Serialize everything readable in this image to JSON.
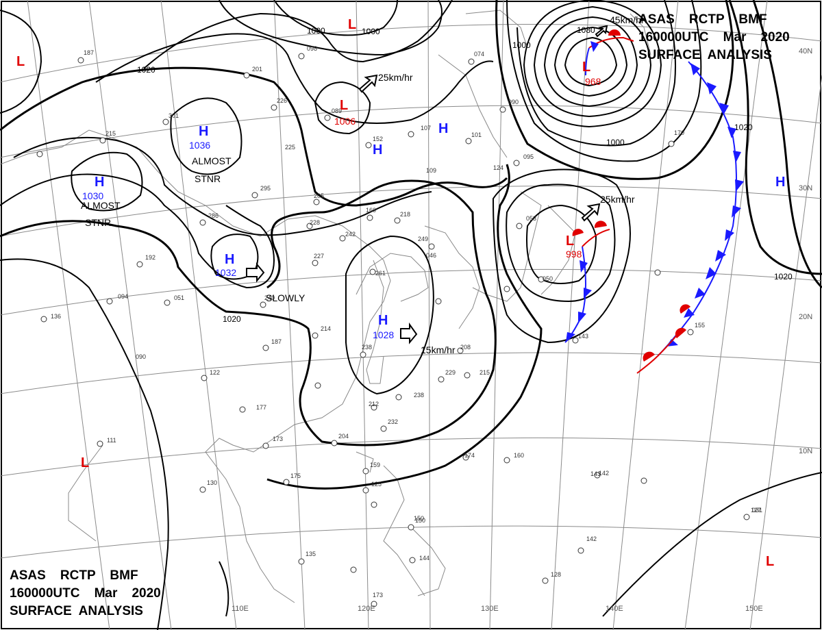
{
  "header_top": {
    "line1": "ASAS    RCTP    BMF",
    "line2": "160000UTC    Mar    2020",
    "line3": "SURFACE  ANALYSIS"
  },
  "header_bottom": {
    "line1": "ASAS    RCTP    BMF",
    "line2": "160000UTC    Mar    2020",
    "line3": "SURFACE  ANALYSIS"
  },
  "isobar_labels": [
    "1000",
    "1000",
    "1020",
    "1000",
    "1020",
    "1020",
    "1020",
    "1000",
    "1080"
  ],
  "longitudes": [
    "110E",
    "120E",
    "130E",
    "140E",
    "150E"
  ],
  "latitudes": [
    "40N",
    "30N",
    "20N",
    "10N"
  ],
  "centers": [
    {
      "type": "H",
      "pressure": "1036",
      "note": "ALMOST STNR"
    },
    {
      "type": "H",
      "pressure": "1030",
      "note": "ALMOST STNR"
    },
    {
      "type": "H",
      "pressure": "1032",
      "note": "SLOWLY"
    },
    {
      "type": "H",
      "pressure": "1028",
      "note": "15km/hr"
    },
    {
      "type": "L",
      "pressure": "1006",
      "note": "25km/hr"
    },
    {
      "type": "L",
      "pressure": "968",
      "note": "45km/hr"
    },
    {
      "type": "L",
      "pressure": "998",
      "note": "25km/hr"
    },
    {
      "type": "H",
      "pressure": "",
      "note": ""
    },
    {
      "type": "H",
      "pressure": "",
      "note": ""
    },
    {
      "type": "H",
      "pressure": "",
      "note": ""
    },
    {
      "type": "L",
      "pressure": "",
      "note": ""
    },
    {
      "type": "L",
      "pressure": "",
      "note": ""
    },
    {
      "type": "L",
      "pressure": "",
      "note": ""
    },
    {
      "type": "L",
      "pressure": "",
      "note": ""
    }
  ],
  "notes": {
    "almost_stnr_1": "ALMOST",
    "stnr_1": "STNR",
    "almost_stnr_2": "ALMOST",
    "stnr_2": "STNR",
    "slowly": "SLOWLY",
    "speed_15": "15km/hr",
    "speed_25a": "25km/hr",
    "speed_25b": "25km/hr",
    "speed_45": "45km/hr"
  },
  "station_obs": [
    "098",
    "201",
    "089",
    "152",
    "107",
    "101",
    "226",
    "301",
    "215",
    "225",
    "295",
    "205",
    "286",
    "228",
    "242",
    "160",
    "218",
    "227",
    "192",
    "094",
    "051",
    "136",
    "240",
    "214",
    "187",
    "090",
    "122",
    "177",
    "173",
    "204",
    "238",
    "212",
    "232",
    "229",
    "215",
    "208",
    "238",
    "174",
    "111",
    "130",
    "175",
    "159",
    "125",
    "150",
    "135",
    "144",
    "173",
    "160",
    "143",
    "142",
    "155",
    "170",
    "095",
    "053",
    "050",
    "143",
    "128",
    "142",
    "127",
    "187",
    "074",
    "090",
    "124",
    "109",
    "150",
    "261",
    "249",
    "046",
    "031"
  ],
  "colors": {
    "isobar": "#000000",
    "grid": "#8a8a8a",
    "coast": "#888888",
    "high": "#1a1aff",
    "low": "#e00000",
    "cold_front": "#1a1aff",
    "warm_front": "#e00000"
  }
}
